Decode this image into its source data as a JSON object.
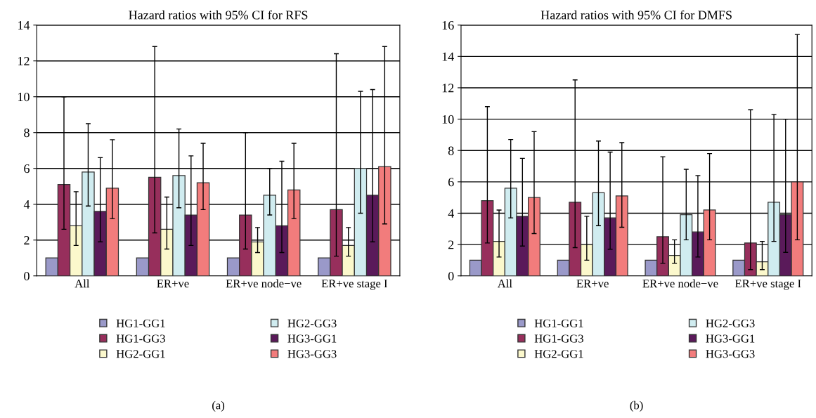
{
  "chart_data": [
    {
      "type": "bar",
      "title": "Hazard ratios with 95% CI for RFS",
      "categories": [
        "All",
        "ER+ve",
        "ER+ve node−ve",
        "ER+ve stage I"
      ],
      "ylim": [
        0,
        14
      ],
      "yticks": [
        0,
        2,
        4,
        6,
        8,
        10,
        12,
        14
      ],
      "grid": "y",
      "legend": "bottom",
      "annotations": [
        "(a)"
      ],
      "series": [
        {
          "name": "HG1-GG1",
          "color": "#9a99c9",
          "values": [
            1,
            1,
            1,
            1
          ]
        },
        {
          "name": "HG1-GG3",
          "color": "#972f5c",
          "values": [
            5.1,
            5.5,
            3.4,
            3.7
          ],
          "errors": [
            [
              2.6,
              10
            ],
            [
              2.4,
              12.8
            ],
            [
              1.5,
              8.0
            ],
            [
              1.1,
              12.4
            ]
          ]
        },
        {
          "name": "HG2-GG1",
          "color": "#fbf8cc",
          "values": [
            2.8,
            2.6,
            1.9,
            1.7
          ],
          "errors": [
            [
              1.7,
              4.7
            ],
            [
              1.5,
              4.4
            ],
            [
              1.3,
              2.7
            ],
            [
              1.1,
              2.7
            ]
          ]
        },
        {
          "name": "HG2-GG3",
          "color": "#d0ecf0",
          "values": [
            5.8,
            5.6,
            4.5,
            6.0
          ],
          "errors": [
            [
              3.9,
              8.5
            ],
            [
              3.8,
              8.2
            ],
            [
              3.4,
              6.0
            ],
            [
              3.5,
              10.3
            ]
          ]
        },
        {
          "name": "HG3-GG1",
          "color": "#5a1a5a",
          "values": [
            3.6,
            3.4,
            2.8,
            4.5
          ],
          "errors": [
            [
              1.9,
              6.6
            ],
            [
              1.7,
              6.7
            ],
            [
              1.3,
              6.4
            ],
            [
              1.9,
              10.4
            ]
          ]
        },
        {
          "name": "HG3-GG3",
          "color": "#f27c7c",
          "values": [
            4.9,
            5.2,
            4.8,
            6.1
          ],
          "errors": [
            [
              3.2,
              7.6
            ],
            [
              3.7,
              7.4
            ],
            [
              3.2,
              7.4
            ],
            [
              2.9,
              12.8
            ]
          ]
        }
      ]
    },
    {
      "type": "bar",
      "title": "Hazard ratios with 95% CI for DMFS",
      "categories": [
        "All",
        "ER+ve",
        "ER+ve node−ve",
        "ER+ve stage I"
      ],
      "ylim": [
        0,
        16
      ],
      "yticks": [
        0,
        2,
        4,
        6,
        8,
        10,
        12,
        14,
        16
      ],
      "grid": "y",
      "legend": "bottom",
      "annotations": [
        "(b)"
      ],
      "series": [
        {
          "name": "HG1-GG1",
          "color": "#9a99c9",
          "values": [
            1,
            1,
            1,
            1
          ]
        },
        {
          "name": "HG1-GG3",
          "color": "#972f5c",
          "values": [
            4.8,
            4.7,
            2.5,
            2.1
          ],
          "errors": [
            [
              2.1,
              10.8
            ],
            [
              1.8,
              12.5
            ],
            [
              0.8,
              7.6
            ],
            [
              0.4,
              10.6
            ]
          ]
        },
        {
          "name": "HG2-GG1",
          "color": "#fbf8cc",
          "values": [
            2.2,
            2.0,
            1.3,
            0.9
          ],
          "errors": [
            [
              1.2,
              4.2
            ],
            [
              1.0,
              3.8
            ],
            [
              0.8,
              2.3
            ],
            [
              0.4,
              2.2
            ]
          ]
        },
        {
          "name": "HG2-GG3",
          "color": "#d0ecf0",
          "values": [
            5.6,
            5.3,
            3.9,
            4.7
          ],
          "errors": [
            [
              3.7,
              8.7
            ],
            [
              3.2,
              8.6
            ],
            [
              2.3,
              6.8
            ],
            [
              2.2,
              10.3
            ]
          ]
        },
        {
          "name": "HG3-GG1",
          "color": "#5a1a5a",
          "values": [
            3.8,
            3.7,
            2.8,
            3.9
          ],
          "errors": [
            [
              1.9,
              7.5
            ],
            [
              1.7,
              7.9
            ],
            [
              1.2,
              6.4
            ],
            [
              1.5,
              10.0
            ]
          ]
        },
        {
          "name": "HG3-GG3",
          "color": "#f27c7c",
          "values": [
            5.0,
            5.1,
            4.2,
            6.0
          ],
          "errors": [
            [
              2.7,
              9.2
            ],
            [
              3.1,
              8.5
            ],
            [
              2.3,
              7.8
            ],
            [
              2.3,
              15.4
            ]
          ]
        }
      ]
    }
  ]
}
